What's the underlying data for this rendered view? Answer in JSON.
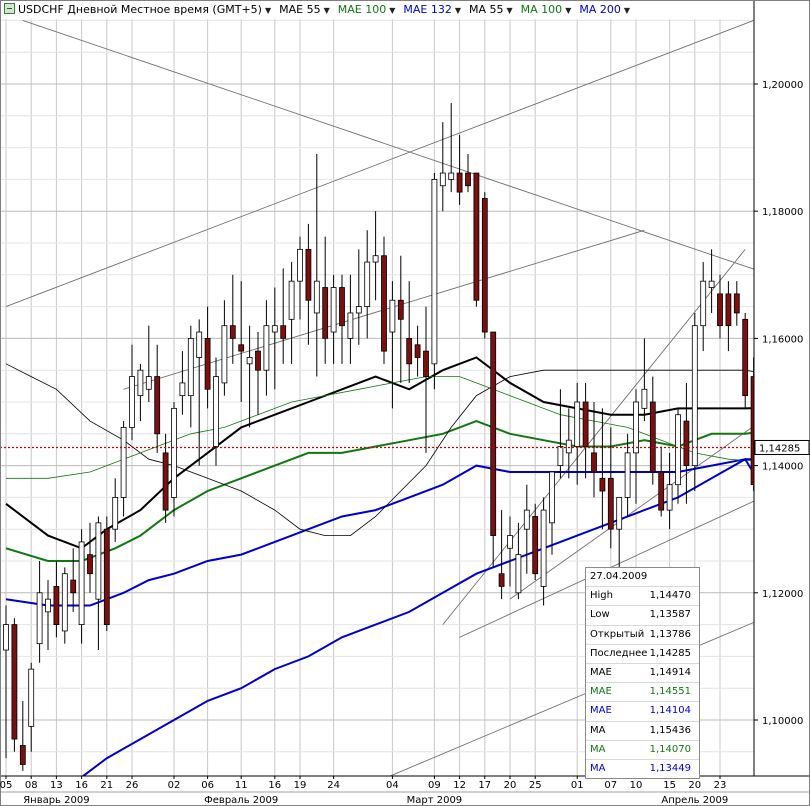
{
  "header": {
    "symbol": "USDCHF Дневной Местное время (GMT+5)",
    "indicators": [
      {
        "label": "MAE 55",
        "color": "#000000"
      },
      {
        "label": "MAE 100",
        "color": "#117711"
      },
      {
        "label": "MAE 132",
        "color": "#0000cc"
      },
      {
        "label": "MA 55",
        "color": "#000000"
      },
      {
        "label": "MA 100",
        "color": "#117711"
      },
      {
        "label": "MA 200",
        "color": "#0000cc"
      }
    ]
  },
  "price_badge": "1,14285",
  "info_panel": {
    "date": "27.04.2009",
    "rows": [
      {
        "label": "High",
        "value": "1,14470",
        "color": "#000000"
      },
      {
        "label": "Low",
        "value": "1,13587",
        "color": "#000000"
      },
      {
        "label": "Открытый",
        "value": "1,13786",
        "color": "#000000"
      },
      {
        "label": "Последнее",
        "value": "1,14285",
        "color": "#000000"
      },
      {
        "label": "MAE",
        "value": "1,14914",
        "color": "#000000"
      },
      {
        "label": "MAE",
        "value": "1,14551",
        "color": "#117711"
      },
      {
        "label": "MAE",
        "value": "1,14104",
        "color": "#0000cc"
      },
      {
        "label": "MA",
        "value": "1,15436",
        "color": "#000000"
      },
      {
        "label": "MA",
        "value": "1,14070",
        "color": "#117711"
      },
      {
        "label": "MA",
        "value": "1,13449",
        "color": "#0000cc"
      }
    ]
  },
  "colors": {
    "bull": "#ffffff",
    "bear": "#7a1010",
    "current_line": "#cc0000",
    "grid": "#c8c8c8",
    "trend": "#707070"
  },
  "chart_data": {
    "type": "candlestick",
    "ylim": [
      1.09,
      1.21
    ],
    "yticks": [
      1.1,
      1.12,
      1.14,
      1.16,
      1.18,
      1.2
    ],
    "ytick_labels": [
      "1,10000",
      "1,12000",
      "1,14000",
      "1,16000",
      "1,18000",
      "1,20000"
    ],
    "xtick_labels": [
      "05",
      "08",
      "13",
      "16",
      "21",
      "26",
      "02",
      "06",
      "11",
      "16",
      "19",
      "24",
      "04",
      "09",
      "12",
      "17",
      "20",
      "25",
      "01",
      "07",
      "10",
      "15",
      "20",
      "23"
    ],
    "xtick_bar_index": [
      0,
      3,
      6,
      9,
      12,
      15,
      20,
      24,
      28,
      32,
      35,
      39,
      46,
      51,
      54,
      57,
      60,
      63,
      68,
      72,
      75,
      79,
      82,
      85
    ],
    "month_labels": [
      {
        "label": "Январь 2009",
        "bar": 6
      },
      {
        "label": "Февраль 2009",
        "bar": 28
      },
      {
        "label": "Март 2009",
        "bar": 51
      },
      {
        "label": "Апрель 2009",
        "bar": 82
      }
    ],
    "current_price": 1.14285,
    "ohlc": [
      [
        1.111,
        1.118,
        1.094,
        1.115
      ],
      [
        1.115,
        1.116,
        1.095,
        1.097
      ],
      [
        1.096,
        1.103,
        1.092,
        1.093
      ],
      [
        1.099,
        1.109,
        1.095,
        1.108
      ],
      [
        1.112,
        1.125,
        1.109,
        1.12
      ],
      [
        1.117,
        1.122,
        1.111,
        1.119
      ],
      [
        1.121,
        1.125,
        1.113,
        1.115
      ],
      [
        1.114,
        1.124,
        1.112,
        1.123
      ],
      [
        1.122,
        1.127,
        1.117,
        1.12
      ],
      [
        1.115,
        1.13,
        1.112,
        1.128
      ],
      [
        1.126,
        1.131,
        1.12,
        1.123
      ],
      [
        1.119,
        1.132,
        1.111,
        1.131
      ],
      [
        1.13,
        1.132,
        1.114,
        1.115
      ],
      [
        1.13,
        1.138,
        1.128,
        1.135
      ],
      [
        1.135,
        1.147,
        1.132,
        1.146
      ],
      [
        1.146,
        1.159,
        1.144,
        1.154
      ],
      [
        1.151,
        1.156,
        1.147,
        1.155
      ],
      [
        1.152,
        1.162,
        1.15,
        1.154
      ],
      [
        1.154,
        1.159,
        1.142,
        1.145
      ],
      [
        1.142,
        1.145,
        1.131,
        1.133
      ],
      [
        1.135,
        1.15,
        1.132,
        1.149
      ],
      [
        1.151,
        1.158,
        1.148,
        1.153
      ],
      [
        1.151,
        1.162,
        1.146,
        1.16
      ],
      [
        1.157,
        1.163,
        1.14,
        1.161
      ],
      [
        1.16,
        1.165,
        1.149,
        1.152
      ],
      [
        1.143,
        1.157,
        1.14,
        1.154
      ],
      [
        1.153,
        1.166,
        1.151,
        1.162
      ],
      [
        1.162,
        1.17,
        1.156,
        1.16
      ],
      [
        1.159,
        1.169,
        1.15,
        1.158
      ],
      [
        1.156,
        1.162,
        1.146,
        1.157
      ],
      [
        1.158,
        1.161,
        1.148,
        1.155
      ],
      [
        1.155,
        1.166,
        1.151,
        1.162
      ],
      [
        1.161,
        1.168,
        1.152,
        1.162
      ],
      [
        1.162,
        1.171,
        1.156,
        1.16
      ],
      [
        1.163,
        1.172,
        1.156,
        1.169
      ],
      [
        1.169,
        1.176,
        1.163,
        1.174
      ],
      [
        1.174,
        1.178,
        1.159,
        1.166
      ],
      [
        1.164,
        1.189,
        1.154,
        1.169
      ],
      [
        1.168,
        1.176,
        1.156,
        1.16
      ],
      [
        1.161,
        1.17,
        1.156,
        1.168
      ],
      [
        1.168,
        1.17,
        1.156,
        1.162
      ],
      [
        1.16,
        1.17,
        1.156,
        1.164
      ],
      [
        1.164,
        1.174,
        1.159,
        1.165
      ],
      [
        1.165,
        1.177,
        1.16,
        1.172
      ],
      [
        1.172,
        1.18,
        1.166,
        1.173
      ],
      [
        1.173,
        1.176,
        1.156,
        1.158
      ],
      [
        1.161,
        1.169,
        1.149,
        1.166
      ],
      [
        1.166,
        1.173,
        1.153,
        1.163
      ],
      [
        1.16,
        1.169,
        1.153,
        1.156
      ],
      [
        1.159,
        1.162,
        1.154,
        1.157
      ],
      [
        1.158,
        1.165,
        1.142,
        1.154
      ],
      [
        1.156,
        1.186,
        1.152,
        1.185
      ],
      [
        1.184,
        1.194,
        1.18,
        1.186
      ],
      [
        1.185,
        1.197,
        1.183,
        1.186
      ],
      [
        1.186,
        1.192,
        1.181,
        1.183
      ],
      [
        1.186,
        1.189,
        1.183,
        1.184
      ],
      [
        1.186,
        1.186,
        1.165,
        1.166
      ],
      [
        1.182,
        1.183,
        1.16,
        1.161
      ],
      [
        1.161,
        1.16,
        1.124,
        1.129
      ],
      [
        1.123,
        1.133,
        1.119,
        1.121
      ],
      [
        1.127,
        1.132,
        1.121,
        1.129
      ],
      [
        1.12,
        1.131,
        1.119,
        1.126
      ],
      [
        1.13,
        1.137,
        1.123,
        1.133
      ],
      [
        1.132,
        1.134,
        1.122,
        1.123
      ],
      [
        1.121,
        1.135,
        1.118,
        1.133
      ],
      [
        1.131,
        1.139,
        1.126,
        1.139
      ],
      [
        1.14,
        1.152,
        1.138,
        1.143
      ],
      [
        1.142,
        1.149,
        1.138,
        1.144
      ],
      [
        1.143,
        1.153,
        1.137,
        1.15
      ],
      [
        1.15,
        1.153,
        1.138,
        1.143
      ],
      [
        1.142,
        1.15,
        1.135,
        1.139
      ],
      [
        1.138,
        1.149,
        1.13,
        1.136
      ],
      [
        1.138,
        1.146,
        1.127,
        1.13
      ],
      [
        1.13,
        1.135,
        1.124,
        1.135
      ],
      [
        1.135,
        1.145,
        1.132,
        1.142
      ],
      [
        1.142,
        1.152,
        1.134,
        1.15
      ],
      [
        1.149,
        1.16,
        1.147,
        1.152
      ],
      [
        1.15,
        1.154,
        1.137,
        1.139
      ],
      [
        1.139,
        1.143,
        1.132,
        1.133
      ],
      [
        1.133,
        1.142,
        1.13,
        1.137
      ],
      [
        1.137,
        1.149,
        1.134,
        1.148
      ],
      [
        1.147,
        1.153,
        1.134,
        1.14
      ],
      [
        1.14,
        1.164,
        1.136,
        1.162
      ],
      [
        1.162,
        1.172,
        1.158,
        1.169
      ],
      [
        1.168,
        1.174,
        1.164,
        1.169
      ],
      [
        1.167,
        1.17,
        1.16,
        1.162
      ],
      [
        1.167,
        1.169,
        1.158,
        1.162
      ],
      [
        1.167,
        1.169,
        1.162,
        1.164
      ],
      [
        1.163,
        1.164,
        1.149,
        1.151
      ],
      [
        1.154,
        1.157,
        1.136,
        1.137
      ],
      [
        1.13786,
        1.1447,
        1.13587,
        1.14285
      ]
    ],
    "series": [
      {
        "name": "MAE 55",
        "color": "#000000",
        "points": [
          [
            0,
            1.134
          ],
          [
            5,
            1.129
          ],
          [
            9,
            1.127
          ],
          [
            12,
            1.13
          ],
          [
            16,
            1.133
          ],
          [
            20,
            1.138
          ],
          [
            24,
            1.142
          ],
          [
            28,
            1.146
          ],
          [
            32,
            1.148
          ],
          [
            36,
            1.15
          ],
          [
            40,
            1.152
          ],
          [
            44,
            1.154
          ],
          [
            48,
            1.152
          ],
          [
            52,
            1.155
          ],
          [
            56,
            1.157
          ],
          [
            60,
            1.153
          ],
          [
            64,
            1.15
          ],
          [
            68,
            1.149
          ],
          [
            72,
            1.148
          ],
          [
            76,
            1.148
          ],
          [
            80,
            1.149
          ],
          [
            84,
            1.149
          ],
          [
            88,
            1.149
          ],
          [
            91,
            1.1491
          ]
        ]
      },
      {
        "name": "MAE 100",
        "color": "#117711",
        "points": [
          [
            0,
            1.127
          ],
          [
            5,
            1.125
          ],
          [
            9,
            1.125
          ],
          [
            13,
            1.127
          ],
          [
            16,
            1.129
          ],
          [
            20,
            1.133
          ],
          [
            24,
            1.136
          ],
          [
            28,
            1.138
          ],
          [
            32,
            1.14
          ],
          [
            36,
            1.142
          ],
          [
            40,
            1.142
          ],
          [
            44,
            1.143
          ],
          [
            48,
            1.144
          ],
          [
            52,
            1.145
          ],
          [
            56,
            1.147
          ],
          [
            60,
            1.145
          ],
          [
            64,
            1.144
          ],
          [
            68,
            1.143
          ],
          [
            72,
            1.143
          ],
          [
            76,
            1.144
          ],
          [
            80,
            1.143
          ],
          [
            84,
            1.145
          ],
          [
            88,
            1.145
          ],
          [
            91,
            1.14551
          ]
        ]
      },
      {
        "name": "MAE 132",
        "color": "#0000cc",
        "points": [
          [
            0,
            1.119
          ],
          [
            5,
            1.118
          ],
          [
            10,
            1.118
          ],
          [
            14,
            1.12
          ],
          [
            17,
            1.122
          ],
          [
            20,
            1.123
          ],
          [
            24,
            1.125
          ],
          [
            28,
            1.126
          ],
          [
            32,
            1.128
          ],
          [
            36,
            1.13
          ],
          [
            40,
            1.132
          ],
          [
            44,
            1.133
          ],
          [
            48,
            1.135
          ],
          [
            52,
            1.137
          ],
          [
            56,
            1.14
          ],
          [
            60,
            1.139
          ],
          [
            64,
            1.139
          ],
          [
            68,
            1.139
          ],
          [
            72,
            1.139
          ],
          [
            76,
            1.139
          ],
          [
            80,
            1.139
          ],
          [
            84,
            1.14
          ],
          [
            88,
            1.141
          ],
          [
            91,
            1.14104
          ]
        ]
      },
      {
        "name": "MA 55",
        "color": "#000000",
        "points": [
          [
            0,
            1.156
          ],
          [
            3,
            1.154
          ],
          [
            6,
            1.152
          ],
          [
            10,
            1.147
          ],
          [
            14,
            1.144
          ],
          [
            17,
            1.141
          ],
          [
            20,
            1.14
          ],
          [
            24,
            1.138
          ],
          [
            28,
            1.136
          ],
          [
            32,
            1.133
          ],
          [
            35,
            1.13
          ],
          [
            38,
            1.129
          ],
          [
            41,
            1.129
          ],
          [
            44,
            1.132
          ],
          [
            47,
            1.136
          ],
          [
            50,
            1.14
          ],
          [
            53,
            1.146
          ],
          [
            56,
            1.151
          ],
          [
            60,
            1.154
          ],
          [
            64,
            1.155
          ],
          [
            68,
            1.155
          ],
          [
            72,
            1.155
          ],
          [
            76,
            1.155
          ],
          [
            80,
            1.155
          ],
          [
            84,
            1.155
          ],
          [
            88,
            1.155
          ],
          [
            91,
            1.15436
          ]
        ]
      },
      {
        "name": "MA 100",
        "color": "#117711",
        "points": [
          [
            0,
            1.138
          ],
          [
            5,
            1.138
          ],
          [
            10,
            1.139
          ],
          [
            14,
            1.141
          ],
          [
            18,
            1.143
          ],
          [
            22,
            1.145
          ],
          [
            26,
            1.146
          ],
          [
            30,
            1.148
          ],
          [
            34,
            1.15
          ],
          [
            38,
            1.151
          ],
          [
            42,
            1.152
          ],
          [
            46,
            1.153
          ],
          [
            50,
            1.154
          ],
          [
            54,
            1.154
          ],
          [
            58,
            1.152
          ],
          [
            62,
            1.15
          ],
          [
            66,
            1.148
          ],
          [
            70,
            1.147
          ],
          [
            74,
            1.146
          ],
          [
            78,
            1.144
          ],
          [
            82,
            1.142
          ],
          [
            86,
            1.141
          ],
          [
            88,
            1.1408
          ],
          [
            91,
            1.1407
          ]
        ]
      },
      {
        "name": "MA 200",
        "color": "#0000cc",
        "points": [
          [
            9,
            1.091
          ],
          [
            12,
            1.094
          ],
          [
            16,
            1.097
          ],
          [
            20,
            1.1
          ],
          [
            24,
            1.103
          ],
          [
            28,
            1.105
          ],
          [
            32,
            1.108
          ],
          [
            36,
            1.11
          ],
          [
            40,
            1.113
          ],
          [
            44,
            1.115
          ],
          [
            48,
            1.117
          ],
          [
            52,
            1.12
          ],
          [
            56,
            1.123
          ],
          [
            60,
            1.125
          ],
          [
            64,
            1.127
          ],
          [
            68,
            1.129
          ],
          [
            72,
            1.131
          ],
          [
            76,
            1.133
          ],
          [
            80,
            1.135
          ],
          [
            84,
            1.138
          ],
          [
            88,
            1.141
          ],
          [
            91,
            1.13449
          ]
        ]
      }
    ],
    "trendlines": [
      [
        [
          2,
          1.21
        ],
        [
          91,
          1.17
        ]
      ],
      [
        [
          0,
          1.165
        ],
        [
          91,
          1.211
        ]
      ],
      [
        [
          14,
          1.152
        ],
        [
          76,
          1.177
        ]
      ],
      [
        [
          54,
          1.113
        ],
        [
          90,
          1.135
        ]
      ],
      [
        [
          52,
          1.115
        ],
        [
          88,
          1.174
        ]
      ],
      [
        [
          60,
          1.119
        ],
        [
          92,
          1.149
        ]
      ],
      [
        [
          40,
          1.088
        ],
        [
          92,
          1.117
        ]
      ]
    ]
  }
}
